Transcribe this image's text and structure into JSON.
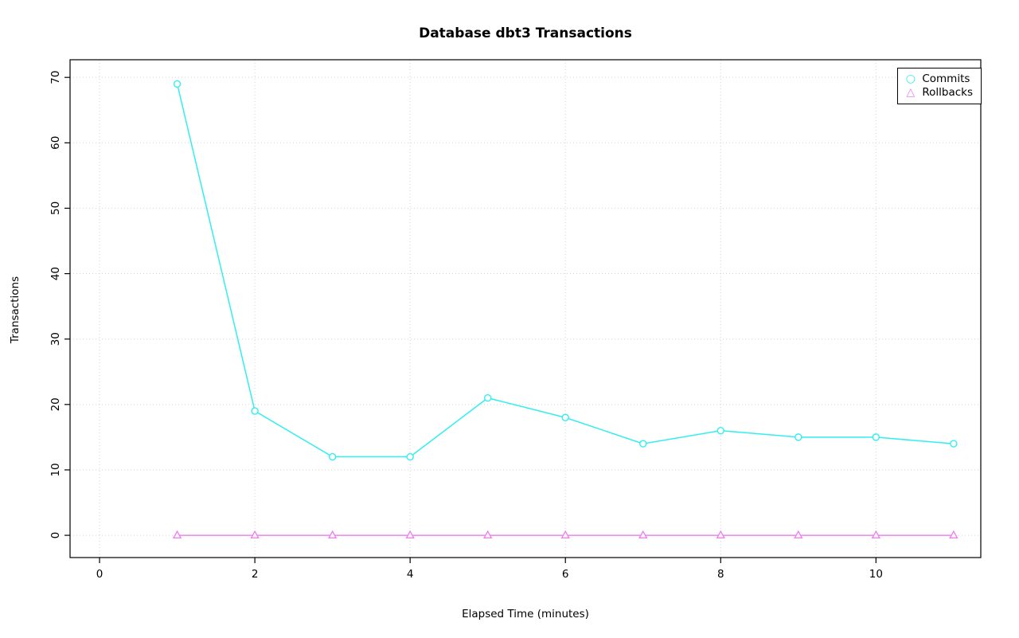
{
  "chart_data": {
    "type": "line",
    "title": "Database dbt3 Transactions",
    "xlabel": "Elapsed Time (minutes)",
    "ylabel": "Transactions",
    "x": [
      1,
      2,
      3,
      4,
      5,
      6,
      7,
      8,
      9,
      10,
      11
    ],
    "series": [
      {
        "name": "Commits",
        "values": [
          69,
          19,
          12,
          12,
          21,
          18,
          14,
          16,
          15,
          15,
          14
        ],
        "color": "#33EEEE",
        "marker": "circle"
      },
      {
        "name": "Rollbacks",
        "values": [
          0,
          0,
          0,
          0,
          0,
          0,
          0,
          0,
          0,
          0,
          0
        ],
        "color": "#EE82EE",
        "marker": "triangle"
      }
    ],
    "xlim": [
      -0.38,
      11.35
    ],
    "ylim": [
      -3.4,
      72.7
    ],
    "xticks": [
      0,
      2,
      4,
      6,
      8,
      10
    ],
    "yticks": [
      0,
      10,
      20,
      30,
      40,
      50,
      60,
      70
    ],
    "grid": true,
    "grid_style": "dotted",
    "legend_position": "top-right",
    "colors": {
      "axis": "#000000",
      "text": "#000000",
      "grid": "#D3D3D3",
      "background": "#FFFFFF"
    }
  }
}
